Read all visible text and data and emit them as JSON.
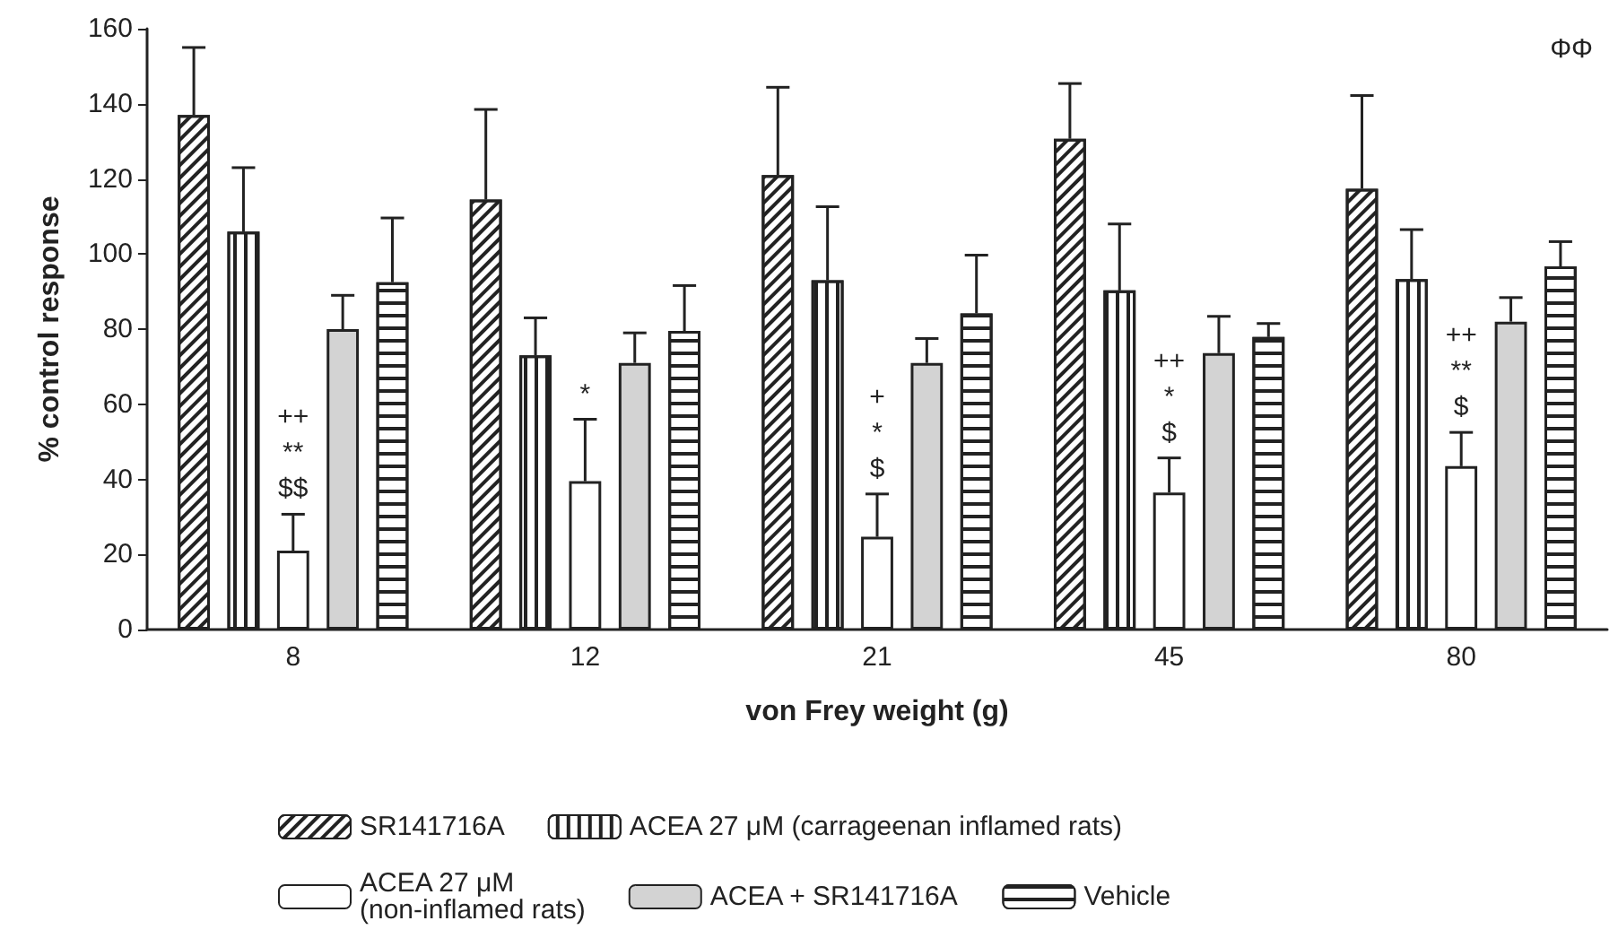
{
  "chart_data": {
    "type": "bar",
    "xlabel": "von Frey weight (g)",
    "ylabel": "% control response",
    "categories": [
      "8",
      "12",
      "21",
      "45",
      "80"
    ],
    "series": [
      {
        "name": "SR141716A",
        "color": "#ffffff",
        "values": [
          137,
          114.5,
          121,
          130.7,
          117.4
        ],
        "errors": [
          [
            137,
            155
          ],
          [
            114.5,
            138.5
          ],
          [
            121,
            144.4
          ],
          [
            130.7,
            145.4
          ],
          [
            117.4,
            142.2
          ]
        ]
      },
      {
        "name": "ACEA 27 μM (carrageenan inflamed rats)",
        "color": "#ffffff",
        "values": [
          106,
          73,
          93,
          90.3,
          93.3
        ],
        "errors": [
          [
            106,
            123
          ],
          [
            73,
            83
          ],
          [
            93,
            112.6
          ],
          [
            90.3,
            108
          ],
          [
            93.3,
            106.5
          ]
        ]
      },
      {
        "name": "ACEA 27 μM\n(non-inflamed rats)",
        "color": "#ffffff",
        "values": [
          21,
          39.5,
          24.7,
          36.5,
          43.5
        ],
        "errors": [
          [
            21,
            30.7
          ],
          [
            39.5,
            56
          ],
          [
            24.7,
            36.1
          ],
          [
            36.5,
            45.7
          ],
          [
            43.5,
            52.5
          ]
        ]
      },
      {
        "name": "ACEA + SR141716A",
        "color": "#d3d3d3",
        "values": [
          80,
          71,
          71,
          73.6,
          82
        ],
        "errors": [
          [
            80,
            89
          ],
          [
            71,
            79
          ],
          [
            71,
            77.5
          ],
          [
            73.6,
            83.4
          ],
          [
            82,
            88.4
          ]
        ]
      },
      {
        "name": "Vehicle",
        "color": "#ffffff",
        "values": [
          92.5,
          79.5,
          84.2,
          77.9,
          96.7
        ],
        "errors": [
          [
            92.5,
            109.6
          ],
          [
            79.5,
            91.6
          ],
          [
            84.2,
            99.7
          ],
          [
            77.9,
            81.5
          ],
          [
            96.7,
            103.3
          ]
        ]
      }
    ],
    "annotations": [
      {
        "text": "++\n**\n$$",
        "x": "8",
        "y": 30.7
      },
      {
        "text": "*",
        "x": "12",
        "y": 56
      },
      {
        "text": "+\n*\n$",
        "x": "21",
        "y": 36.1
      },
      {
        "text": "++\n*\n$",
        "x": "45",
        "y": 45.7
      },
      "ΦΦ",
      {
        "text": "++\n**\n$",
        "x": "80",
        "y": 52.5
      }
    ],
    "ylim": [
      0,
      160
    ],
    "yticks": [
      0,
      20,
      40,
      60,
      80,
      100,
      120,
      140,
      160
    ],
    "grid": false,
    "legend": "bottom"
  }
}
